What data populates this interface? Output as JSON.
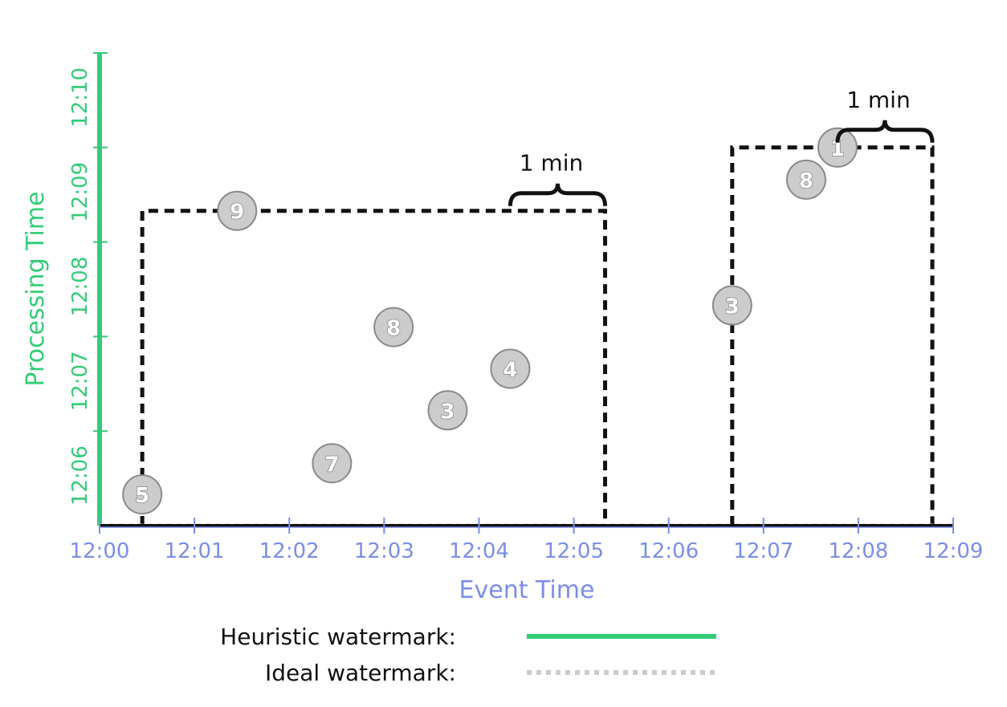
{
  "chart_data": {
    "type": "scatter",
    "title": "",
    "xlabel": "Event Time",
    "ylabel": "Processing Time",
    "x_ticks": [
      "12:00",
      "12:01",
      "12:02",
      "12:03",
      "12:04",
      "12:05",
      "12:06",
      "12:07",
      "12:08",
      "12:09"
    ],
    "y_ticks": [
      "12:06",
      "12:07",
      "12:08",
      "12:09",
      "12:10"
    ],
    "xlim": [
      0,
      9
    ],
    "ylim": [
      5,
      10
    ],
    "points": [
      {
        "label": "5",
        "x": 0.45,
        "y": 5.33
      },
      {
        "label": "9",
        "x": 1.45,
        "y": 8.33
      },
      {
        "label": "7",
        "x": 2.45,
        "y": 5.66
      },
      {
        "label": "8",
        "x": 3.1,
        "y": 7.1
      },
      {
        "label": "3",
        "x": 3.67,
        "y": 6.22
      },
      {
        "label": "4",
        "x": 4.33,
        "y": 6.66
      },
      {
        "label": "3",
        "x": 6.67,
        "y": 7.33
      },
      {
        "label": "8",
        "x": 7.45,
        "y": 8.66
      },
      {
        "label": "1",
        "x": 7.78,
        "y": 9.0
      }
    ],
    "windows": [
      {
        "x_start": 0.45,
        "x_end": 5.33,
        "y_top": 8.33
      },
      {
        "x_start": 6.67,
        "x_end": 8.78,
        "y_top": 9.0
      }
    ],
    "annotations": [
      {
        "text": "1 min",
        "x_start": 4.33,
        "x_end": 5.33,
        "y": 8.33
      },
      {
        "text": "1 min",
        "x_start": 7.78,
        "x_end": 8.78,
        "y": 9.0
      }
    ],
    "legend": [
      {
        "label": "Heuristic watermark:",
        "style": "solid",
        "color": "#33cc77"
      },
      {
        "label": "Ideal watermark:",
        "style": "dotted",
        "color": "#cccccc"
      }
    ],
    "colors": {
      "x_axis": "#7b8ee6",
      "y_axis": "#33cc77",
      "heuristic": "#33cc77",
      "ideal": "#cccccc",
      "window": "#111111",
      "point_fill": "#cccccc",
      "point_stroke": "#8a8a8a"
    }
  }
}
